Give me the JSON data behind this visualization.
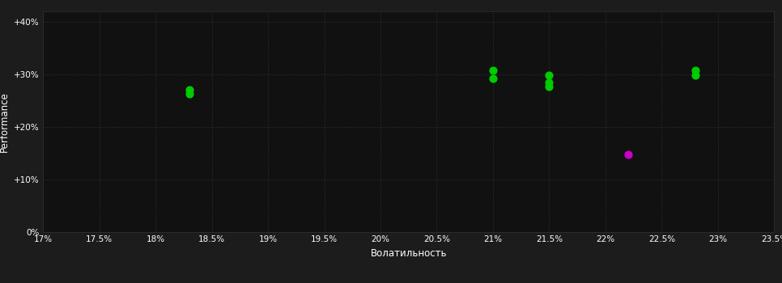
{
  "background_color": "#1c1c1c",
  "plot_bg_color": "#111111",
  "grid_color": "#2a2a2a",
  "xlabel": "Волатильность",
  "ylabel": "Performance",
  "xlim": [
    0.17,
    0.235
  ],
  "ylim": [
    0.0,
    0.42
  ],
  "xticks": [
    0.17,
    0.175,
    0.18,
    0.185,
    0.19,
    0.195,
    0.2,
    0.205,
    0.21,
    0.215,
    0.22,
    0.225,
    0.23,
    0.235
  ],
  "yticks": [
    0.0,
    0.1,
    0.2,
    0.3,
    0.4
  ],
  "green_points": [
    [
      0.183,
      0.271
    ],
    [
      0.183,
      0.263
    ],
    [
      0.21,
      0.308
    ],
    [
      0.21,
      0.293
    ],
    [
      0.215,
      0.298
    ],
    [
      0.215,
      0.285
    ],
    [
      0.215,
      0.277
    ],
    [
      0.228,
      0.308
    ],
    [
      0.228,
      0.298
    ]
  ],
  "magenta_points": [
    [
      0.222,
      0.148
    ]
  ],
  "point_size": 40,
  "green_color": "#00cc00",
  "magenta_color": "#cc00cc",
  "grid_linestyle": "--",
  "grid_linewidth": 0.5,
  "tick_fontsize": 7.5,
  "label_fontsize": 8.5
}
